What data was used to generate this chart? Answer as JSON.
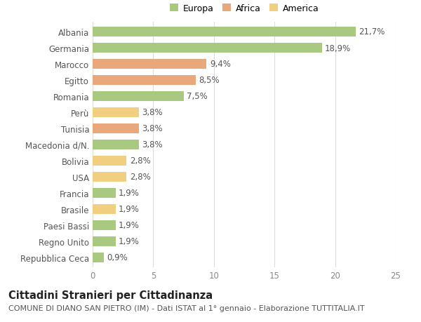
{
  "categories": [
    "Albania",
    "Germania",
    "Marocco",
    "Egitto",
    "Romania",
    "Perù",
    "Tunisia",
    "Macedonia d/N.",
    "Bolivia",
    "USA",
    "Francia",
    "Brasile",
    "Paesi Bassi",
    "Regno Unito",
    "Repubblica Ceca"
  ],
  "values": [
    21.7,
    18.9,
    9.4,
    8.5,
    7.5,
    3.8,
    3.8,
    3.8,
    2.8,
    2.8,
    1.9,
    1.9,
    1.9,
    1.9,
    0.9
  ],
  "continents": [
    "Europa",
    "Europa",
    "Africa",
    "Africa",
    "Europa",
    "America",
    "Africa",
    "Europa",
    "America",
    "America",
    "Europa",
    "America",
    "Europa",
    "Europa",
    "Europa"
  ],
  "colors": {
    "Europa": "#a8c97f",
    "Africa": "#e8a87c",
    "America": "#f0d080"
  },
  "title": "Cittadini Stranieri per Cittadinanza",
  "subtitle": "COMUNE DI DIANO SAN PIETRO (IM) - Dati ISTAT al 1° gennaio - Elaborazione TUTTITALIA.IT",
  "xlim": [
    0,
    25
  ],
  "xticks": [
    0,
    5,
    10,
    15,
    20,
    25
  ],
  "background_color": "#ffffff",
  "grid_color": "#dddddd",
  "bar_height": 0.65,
  "label_fontsize": 8.5,
  "title_fontsize": 10.5,
  "subtitle_fontsize": 8,
  "legend_fontsize": 9
}
